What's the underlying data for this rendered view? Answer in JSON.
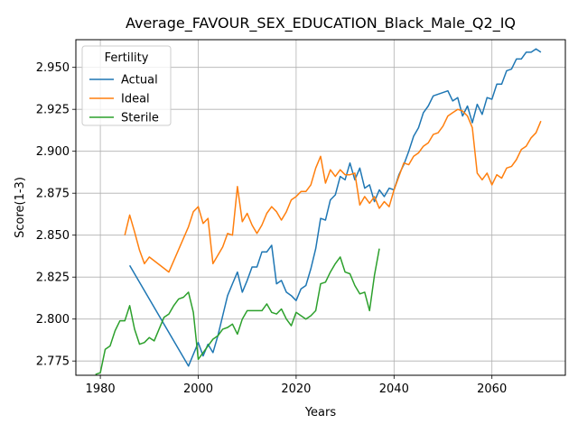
{
  "chart_data": {
    "type": "line",
    "title": "Average_FAVOUR_SEX_EDUCATION_Black_Male_Q2_IQ",
    "xlabel": "Years",
    "ylabel": "Score(1-3)",
    "xlim": [
      1975,
      2075
    ],
    "ylim": [
      2.7665,
      2.9665
    ],
    "xticks": [
      1980,
      2000,
      2020,
      2040,
      2060
    ],
    "xtick_labels": [
      "1980",
      "2000",
      "2020",
      "2040",
      "2060"
    ],
    "yticks": [
      2.775,
      2.8,
      2.825,
      2.85,
      2.875,
      2.9,
      2.925,
      2.95
    ],
    "ytick_labels": [
      "2.775",
      "2.800",
      "2.825",
      "2.850",
      "2.875",
      "2.900",
      "2.925",
      "2.950"
    ],
    "grid": true,
    "legend": {
      "title": "Fertility",
      "placement": "upper-left"
    },
    "series": [
      {
        "name": "Actual",
        "color": "#1f77b4",
        "x": [
          1986,
          1998,
          2000,
          2001,
          2002,
          2003,
          2004,
          2005,
          2006,
          2007,
          2008,
          2009,
          2010,
          2011,
          2012,
          2013,
          2014,
          2015,
          2016,
          2017,
          2018,
          2019,
          2020,
          2021,
          2022,
          2023,
          2024,
          2025,
          2026,
          2027,
          2028,
          2029,
          2030,
          2031,
          2032,
          2033,
          2034,
          2035,
          2036,
          2037,
          2038,
          2039,
          2040,
          2041,
          2042,
          2043,
          2044,
          2045,
          2046,
          2047,
          2048,
          2049,
          2050,
          2051,
          2052,
          2053,
          2054,
          2055,
          2056,
          2057,
          2058,
          2059,
          2060,
          2061,
          2062,
          2063,
          2064,
          2065,
          2066,
          2067,
          2068,
          2069,
          2070
        ],
        "y": [
          2.832,
          2.772,
          2.786,
          2.778,
          2.785,
          2.78,
          2.79,
          2.802,
          2.814,
          2.821,
          2.828,
          2.816,
          2.823,
          2.831,
          2.831,
          2.84,
          2.84,
          2.844,
          2.821,
          2.823,
          2.816,
          2.814,
          2.811,
          2.818,
          2.82,
          2.83,
          2.842,
          2.86,
          2.859,
          2.871,
          2.874,
          2.885,
          2.883,
          2.893,
          2.883,
          2.89,
          2.878,
          2.88,
          2.87,
          2.877,
          2.873,
          2.878,
          2.877,
          2.886,
          2.892,
          2.9,
          2.909,
          2.914,
          2.923,
          2.927,
          2.933,
          2.934,
          2.935,
          2.936,
          2.93,
          2.932,
          2.921,
          2.927,
          2.917,
          2.928,
          2.922,
          2.932,
          2.931,
          2.94,
          2.94,
          2.948,
          2.949,
          2.955,
          2.955,
          2.959,
          2.959,
          2.961,
          2.959
        ]
      },
      {
        "name": "Ideal",
        "color": "#ff7f0e",
        "x": [
          1985,
          1986,
          1987,
          1988,
          1989,
          1990,
          1994,
          1998,
          1999,
          2000,
          2001,
          2002,
          2003,
          2004,
          2005,
          2006,
          2007,
          2008,
          2009,
          2010,
          2011,
          2012,
          2013,
          2014,
          2015,
          2016,
          2017,
          2018,
          2019,
          2020,
          2021,
          2022,
          2023,
          2024,
          2025,
          2026,
          2027,
          2028,
          2029,
          2030,
          2031,
          2032,
          2033,
          2034,
          2035,
          2036,
          2037,
          2038,
          2039,
          2040,
          2041,
          2042,
          2043,
          2044,
          2045,
          2046,
          2047,
          2048,
          2049,
          2050,
          2051,
          2052,
          2053,
          2054,
          2055,
          2056,
          2057,
          2058,
          2059,
          2060,
          2061,
          2062,
          2063,
          2064,
          2065,
          2066,
          2067,
          2068,
          2069,
          2070
        ],
        "y": [
          2.85,
          2.862,
          2.852,
          2.841,
          2.833,
          2.837,
          2.828,
          2.855,
          2.864,
          2.867,
          2.857,
          2.86,
          2.833,
          2.838,
          2.843,
          2.851,
          2.85,
          2.879,
          2.858,
          2.863,
          2.856,
          2.851,
          2.856,
          2.863,
          2.867,
          2.864,
          2.859,
          2.864,
          2.871,
          2.873,
          2.876,
          2.876,
          2.88,
          2.89,
          2.897,
          2.881,
          2.889,
          2.885,
          2.889,
          2.886,
          2.886,
          2.887,
          2.868,
          2.873,
          2.869,
          2.873,
          2.866,
          2.87,
          2.867,
          2.877,
          2.885,
          2.893,
          2.892,
          2.897,
          2.899,
          2.903,
          2.905,
          2.91,
          2.911,
          2.915,
          2.921,
          2.923,
          2.925,
          2.924,
          2.921,
          2.914,
          2.887,
          2.883,
          2.887,
          2.88,
          2.886,
          2.884,
          2.89,
          2.891,
          2.895,
          2.901,
          2.903,
          2.908,
          2.911,
          2.918
        ]
      },
      {
        "name": "Sterile",
        "color": "#2ca02c",
        "x": [
          1979,
          1980,
          1981,
          1982,
          1983,
          1984,
          1985,
          1986,
          1987,
          1988,
          1989,
          1990,
          1991,
          1992,
          1993,
          1994,
          1995,
          1996,
          1997,
          1998,
          1999,
          2000,
          2001,
          2002,
          2003,
          2004,
          2005,
          2006,
          2007,
          2008,
          2009,
          2010,
          2011,
          2012,
          2013,
          2014,
          2015,
          2016,
          2017,
          2018,
          2019,
          2020,
          2021,
          2022,
          2023,
          2024,
          2025,
          2026,
          2027,
          2028,
          2029,
          2030,
          2031,
          2032,
          2033,
          2034,
          2035,
          2036,
          2037
        ],
        "y": [
          2.767,
          2.768,
          2.782,
          2.784,
          2.793,
          2.799,
          2.799,
          2.808,
          2.794,
          2.785,
          2.786,
          2.789,
          2.787,
          2.794,
          2.801,
          2.803,
          2.808,
          2.812,
          2.813,
          2.816,
          2.804,
          2.776,
          2.78,
          2.784,
          2.788,
          2.79,
          2.794,
          2.795,
          2.797,
          2.791,
          2.8,
          2.805,
          2.805,
          2.805,
          2.805,
          2.809,
          2.804,
          2.803,
          2.806,
          2.8,
          2.796,
          2.804,
          2.802,
          2.8,
          2.802,
          2.805,
          2.821,
          2.822,
          2.828,
          2.833,
          2.837,
          2.828,
          2.827,
          2.82,
          2.815,
          2.816,
          2.805,
          2.826,
          2.842
        ]
      }
    ]
  }
}
